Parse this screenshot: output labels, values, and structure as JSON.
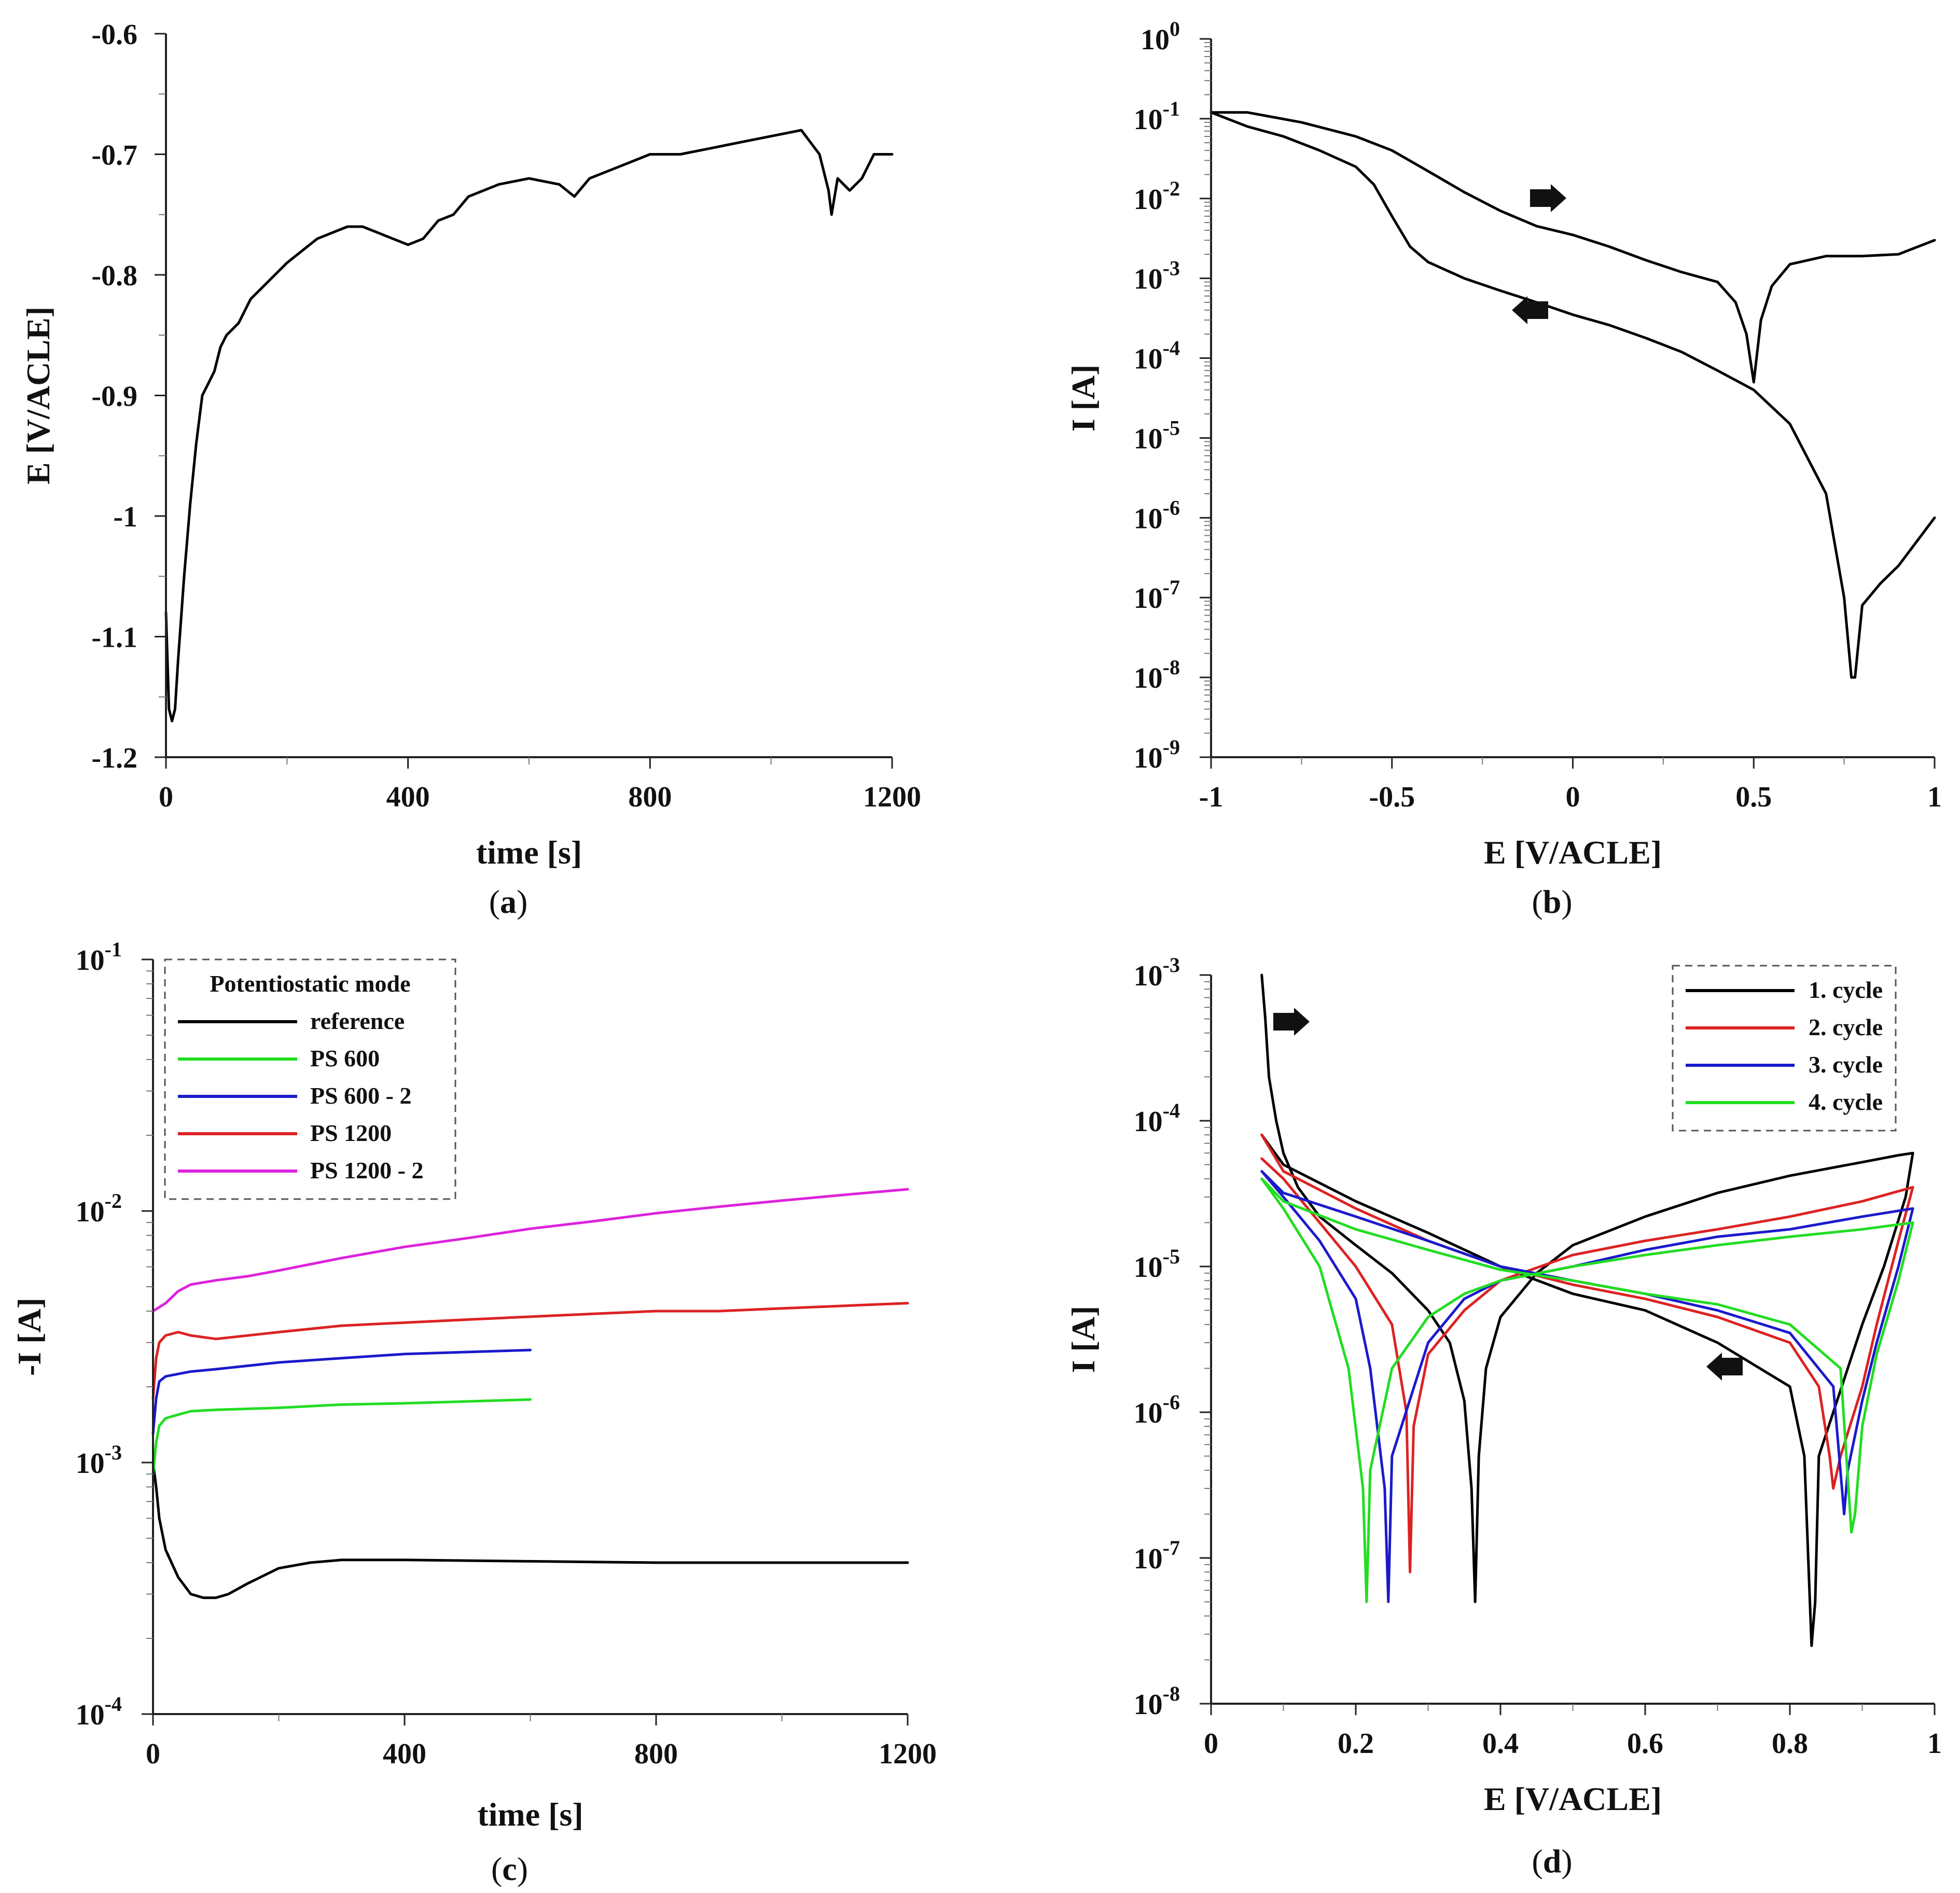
{
  "chart_data": [
    {
      "id": "a",
      "type": "line",
      "panel_label": "a",
      "xlabel": "time [s]",
      "ylabel": "E [V/ACLE]",
      "xlim": [
        0,
        1200
      ],
      "ylim": [
        -1.2,
        -0.6
      ],
      "xticks": [
        0,
        400,
        800,
        1200
      ],
      "xtick_labels": [
        "0",
        "400",
        "800",
        "1200"
      ],
      "yticks": [
        -0.6,
        -0.7,
        -0.8,
        -0.9,
        -1.0,
        -1.1,
        -1.2
      ],
      "ytick_labels": [
        "-0.6",
        "-0.7",
        "-0.8",
        "-0.9",
        "-1",
        "-1.1",
        "-1.2"
      ],
      "series": [
        {
          "color": "#000000",
          "x": [
            0,
            5,
            10,
            15,
            20,
            30,
            40,
            50,
            60,
            70,
            80,
            90,
            100,
            120,
            140,
            160,
            180,
            200,
            225,
            250,
            275,
            300,
            325,
            350,
            375,
            400,
            425,
            450,
            475,
            500,
            550,
            600,
            650,
            675,
            700,
            750,
            800,
            850,
            900,
            950,
            1000,
            1050,
            1080,
            1095,
            1100,
            1110,
            1130,
            1150,
            1170,
            1200
          ],
          "y": [
            -1.08,
            -1.16,
            -1.17,
            -1.16,
            -1.12,
            -1.05,
            -0.99,
            -0.94,
            -0.9,
            -0.89,
            -0.88,
            -0.86,
            -0.85,
            -0.84,
            -0.82,
            -0.81,
            -0.8,
            -0.79,
            -0.78,
            -0.77,
            -0.765,
            -0.76,
            -0.76,
            -0.765,
            -0.77,
            -0.775,
            -0.77,
            -0.755,
            -0.75,
            -0.735,
            -0.725,
            -0.72,
            -0.725,
            -0.735,
            -0.72,
            -0.71,
            -0.7,
            -0.7,
            -0.695,
            -0.69,
            -0.685,
            -0.68,
            -0.7,
            -0.73,
            -0.75,
            -0.72,
            -0.73,
            -0.72,
            -0.7,
            -0.7
          ]
        }
      ]
    },
    {
      "id": "b",
      "type": "line",
      "panel_label": "b",
      "xlabel": "E [V/ACLE]",
      "ylabel": "I [A]",
      "yscale": "log",
      "xlim": [
        -1,
        1
      ],
      "ylim": [
        1e-09,
        1
      ],
      "xticks": [
        -1,
        -0.5,
        0,
        0.5,
        1
      ],
      "xtick_labels": [
        "-1",
        "-0.5",
        "0",
        "0.5",
        "1"
      ],
      "ytick_exponents": [
        "0",
        "-1",
        "-2",
        "-3",
        "-4",
        "-5",
        "-6",
        "-7",
        "-8",
        "-9"
      ],
      "ytick_base": "10",
      "series": [
        {
          "color": "#000000",
          "x": [
            -1.0,
            -0.9,
            -0.75,
            -0.6,
            -0.5,
            -0.4,
            -0.3,
            -0.2,
            -0.1,
            0.0,
            0.1,
            0.2,
            0.3,
            0.4,
            0.45,
            0.48,
            0.5,
            0.52,
            0.55,
            0.6,
            0.7,
            0.8,
            0.9,
            1.0
          ],
          "y": [
            0.12,
            0.12,
            0.09,
            0.06,
            0.04,
            0.022,
            0.012,
            0.007,
            0.0045,
            0.0035,
            0.0025,
            0.0017,
            0.0012,
            0.0009,
            0.0005,
            0.0002,
            5e-05,
            0.0003,
            0.0008,
            0.0015,
            0.0019,
            0.0019,
            0.002,
            0.003
          ]
        },
        {
          "color": "#000000",
          "x": [
            1.0,
            0.95,
            0.9,
            0.85,
            0.8,
            0.78,
            0.77,
            0.75,
            0.72,
            0.7,
            0.6,
            0.5,
            0.4,
            0.3,
            0.2,
            0.1,
            0.0,
            -0.1,
            -0.2,
            -0.3,
            -0.4,
            -0.45,
            -0.5,
            -0.55,
            -0.6,
            -0.7,
            -0.8,
            -0.9,
            -1.0
          ],
          "y": [
            1e-06,
            5e-07,
            2.5e-07,
            1.5e-07,
            8e-08,
            1e-08,
            1e-08,
            1e-07,
            6e-07,
            2e-06,
            1.5e-05,
            4e-05,
            7e-05,
            0.00012,
            0.00018,
            0.00026,
            0.00035,
            0.0005,
            0.0007,
            0.001,
            0.0016,
            0.0025,
            0.006,
            0.015,
            0.025,
            0.04,
            0.06,
            0.08,
            0.12
          ]
        }
      ]
    },
    {
      "id": "c",
      "type": "line",
      "panel_label": "c",
      "xlabel": "time [s]",
      "ylabel": "-I [A]",
      "yscale": "log",
      "xlim": [
        0,
        1200
      ],
      "ylim": [
        0.0001,
        0.1
      ],
      "xticks": [
        0,
        400,
        800,
        1200
      ],
      "xtick_labels": [
        "0",
        "400",
        "800",
        "1200"
      ],
      "ytick_exponents": [
        "-1",
        "-2",
        "-3",
        "-4"
      ],
      "ytick_base": "10",
      "legend": {
        "title": "Potentiostatic mode",
        "placement": "top-left"
      },
      "series": [
        {
          "name": "reference",
          "color": "#000000",
          "x": [
            0,
            5,
            10,
            20,
            40,
            60,
            80,
            100,
            120,
            150,
            200,
            250,
            300,
            400,
            600,
            800,
            1000,
            1200
          ],
          "y": [
            0.001,
            0.0008,
            0.0006,
            0.00045,
            0.00035,
            0.0003,
            0.00029,
            0.00029,
            0.0003,
            0.00033,
            0.00038,
            0.0004,
            0.00041,
            0.00041,
            0.000405,
            0.0004,
            0.0004,
            0.0004
          ]
        },
        {
          "name": "PS 600",
          "color": "#22dd22",
          "x": [
            0,
            5,
            10,
            20,
            40,
            60,
            100,
            200,
            300,
            400,
            500,
            600
          ],
          "y": [
            0.0009,
            0.0012,
            0.0014,
            0.0015,
            0.00155,
            0.0016,
            0.00162,
            0.00165,
            0.0017,
            0.00172,
            0.00175,
            0.00178
          ]
        },
        {
          "name": "PS 600 - 2",
          "color": "#1a1acc",
          "x": [
            0,
            5,
            10,
            20,
            40,
            60,
            100,
            200,
            300,
            400,
            500,
            600
          ],
          "y": [
            0.0013,
            0.0018,
            0.0021,
            0.0022,
            0.00225,
            0.0023,
            0.00235,
            0.0025,
            0.0026,
            0.0027,
            0.00275,
            0.0028
          ]
        },
        {
          "name": "PS 1200",
          "color": "#dd2222",
          "x": [
            0,
            5,
            10,
            20,
            40,
            60,
            100,
            200,
            300,
            400,
            500,
            600,
            700,
            800,
            900,
            1000,
            1100,
            1200
          ],
          "y": [
            0.0018,
            0.0026,
            0.003,
            0.0032,
            0.0033,
            0.0032,
            0.0031,
            0.0033,
            0.0035,
            0.0036,
            0.0037,
            0.0038,
            0.0039,
            0.004,
            0.004,
            0.0041,
            0.0042,
            0.0043
          ]
        },
        {
          "name": "PS 1200 - 2",
          "color": "#dd22dd",
          "x": [
            0,
            20,
            40,
            60,
            100,
            150,
            200,
            300,
            400,
            500,
            600,
            700,
            800,
            900,
            1000,
            1100,
            1200
          ],
          "y": [
            0.004,
            0.0043,
            0.0048,
            0.0051,
            0.0053,
            0.0055,
            0.0058,
            0.0065,
            0.0072,
            0.0078,
            0.0085,
            0.0091,
            0.0098,
            0.0104,
            0.011,
            0.0116,
            0.0122
          ]
        }
      ]
    },
    {
      "id": "d",
      "type": "line",
      "panel_label": "d",
      "xlabel": "E [V/ACLE]",
      "ylabel": "I [A]",
      "yscale": "log",
      "xlim": [
        0,
        1
      ],
      "ylim": [
        1e-08,
        0.001
      ],
      "xticks": [
        0,
        0.2,
        0.4,
        0.6,
        0.8,
        1
      ],
      "xtick_labels": [
        "0",
        "0.2",
        "0.4",
        "0.6",
        "0.8",
        "1"
      ],
      "ytick_exponents": [
        "-3",
        "-4",
        "-5",
        "-6",
        "-7",
        "-8"
      ],
      "ytick_base": "10",
      "legend": {
        "placement": "top-right"
      },
      "series": [
        {
          "name": "1. cycle",
          "color": "#000000",
          "x": [
            0.07,
            0.075,
            0.08,
            0.09,
            0.1,
            0.12,
            0.15,
            0.2,
            0.25,
            0.3,
            0.33,
            0.35,
            0.36,
            0.365,
            0.37,
            0.38,
            0.4,
            0.45,
            0.5,
            0.6,
            0.7,
            0.8,
            0.9,
            0.95,
            0.97,
            0.96,
            0.93,
            0.9,
            0.88,
            0.86,
            0.84,
            0.835,
            0.83,
            0.82,
            0.8,
            0.7,
            0.6,
            0.5,
            0.4,
            0.3,
            0.2,
            0.1,
            0.07
          ],
          "y": [
            0.001,
            0.0005,
            0.0002,
            0.0001,
            6e-05,
            3.5e-05,
            2.2e-05,
            1.4e-05,
            9e-06,
            5e-06,
            3e-06,
            1.2e-06,
            3e-07,
            5e-08,
            5e-07,
            2e-06,
            4.5e-06,
            9e-06,
            1.4e-05,
            2.2e-05,
            3.2e-05,
            4.2e-05,
            5.2e-05,
            5.8e-05,
            6e-05,
            3e-05,
            1e-05,
            4e-06,
            2e-06,
            1e-06,
            5e-07,
            5e-08,
            2.5e-08,
            5e-07,
            1.5e-06,
            3e-06,
            5e-06,
            6.5e-06,
            1e-05,
            1.7e-05,
            2.8e-05,
            5e-05,
            8e-05
          ]
        },
        {
          "name": "2. cycle",
          "color": "#dd2222",
          "x": [
            0.07,
            0.1,
            0.15,
            0.2,
            0.25,
            0.27,
            0.275,
            0.28,
            0.3,
            0.35,
            0.4,
            0.5,
            0.6,
            0.7,
            0.8,
            0.9,
            0.97,
            0.95,
            0.92,
            0.9,
            0.87,
            0.86,
            0.855,
            0.84,
            0.8,
            0.7,
            0.6,
            0.5,
            0.4,
            0.3,
            0.2,
            0.1,
            0.07
          ],
          "y": [
            5.5e-05,
            4e-05,
            2e-05,
            1e-05,
            4e-06,
            1e-06,
            8e-08,
            8e-07,
            2.5e-06,
            5e-06,
            8e-06,
            1.2e-05,
            1.5e-05,
            1.8e-05,
            2.2e-05,
            2.8e-05,
            3.5e-05,
            1.5e-05,
            4e-06,
            1.5e-06,
            5e-07,
            3e-07,
            5e-07,
            1.5e-06,
            3e-06,
            4.5e-06,
            6e-06,
            7.5e-06,
            1e-05,
            1.5e-05,
            2.5e-05,
            4.5e-05,
            8e-05
          ]
        },
        {
          "name": "3. cycle",
          "color": "#1a1acc",
          "x": [
            0.07,
            0.1,
            0.15,
            0.2,
            0.22,
            0.24,
            0.245,
            0.25,
            0.3,
            0.35,
            0.4,
            0.5,
            0.6,
            0.7,
            0.8,
            0.9,
            0.97,
            0.95,
            0.92,
            0.9,
            0.88,
            0.875,
            0.86,
            0.8,
            0.7,
            0.6,
            0.5,
            0.4,
            0.3,
            0.2,
            0.1,
            0.07
          ],
          "y": [
            4.5e-05,
            3e-05,
            1.5e-05,
            6e-06,
            2e-06,
            3e-07,
            5e-08,
            5e-07,
            3e-06,
            6e-06,
            8e-06,
            1e-05,
            1.3e-05,
            1.6e-05,
            1.8e-05,
            2.2e-05,
            2.5e-05,
            1e-05,
            3e-06,
            1.2e-06,
            4e-07,
            2e-07,
            1.5e-06,
            3.5e-06,
            5e-06,
            6.5e-06,
            8e-06,
            1e-05,
            1.5e-05,
            2.2e-05,
            3.2e-05,
            4.5e-05
          ]
        },
        {
          "name": "4. cycle",
          "color": "#22dd22",
          "x": [
            0.07,
            0.1,
            0.15,
            0.19,
            0.21,
            0.215,
            0.22,
            0.25,
            0.3,
            0.35,
            0.4,
            0.5,
            0.6,
            0.7,
            0.8,
            0.9,
            0.97,
            0.95,
            0.92,
            0.9,
            0.89,
            0.885,
            0.87,
            0.8,
            0.7,
            0.6,
            0.5,
            0.4,
            0.3,
            0.2,
            0.1,
            0.07
          ],
          "y": [
            4e-05,
            2.5e-05,
            1e-05,
            2e-06,
            3e-07,
            5e-08,
            4e-07,
            2e-06,
            4.5e-06,
            6.5e-06,
            8e-06,
            1e-05,
            1.2e-05,
            1.4e-05,
            1.6e-05,
            1.8e-05,
            2e-05,
            8e-06,
            2.5e-06,
            8e-07,
            2e-07,
            1.5e-07,
            2e-06,
            4e-06,
            5.5e-06,
            6.5e-06,
            8e-06,
            9.5e-06,
            1.3e-05,
            1.8e-05,
            2.8e-05,
            4e-05
          ]
        }
      ]
    }
  ]
}
